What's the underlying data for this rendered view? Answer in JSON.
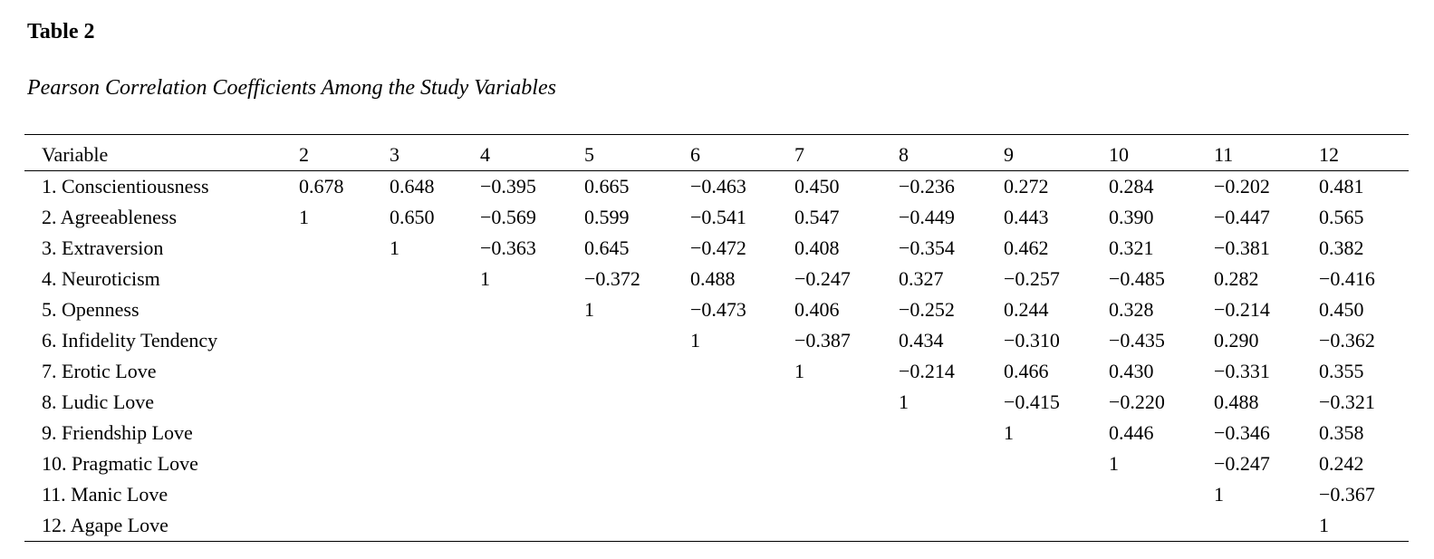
{
  "header": {
    "title": "Table 2",
    "subtitle": "Pearson Correlation Coefficients Among the Study Variables"
  },
  "table": {
    "columns": [
      "Variable",
      "2",
      "3",
      "4",
      "5",
      "6",
      "7",
      "8",
      "9",
      "10",
      "11",
      "12"
    ],
    "rows": [
      [
        "1. Conscientiousness",
        "0.678",
        "0.648",
        "−0.395",
        "0.665",
        "−0.463",
        "0.450",
        "−0.236",
        "0.272",
        "0.284",
        "−0.202",
        "0.481"
      ],
      [
        "2. Agreeableness",
        "1",
        "0.650",
        "−0.569",
        "0.599",
        "−0.541",
        "0.547",
        "−0.449",
        "0.443",
        "0.390",
        "−0.447",
        "0.565"
      ],
      [
        "3. Extraversion",
        null,
        "1",
        "−0.363",
        "0.645",
        "−0.472",
        "0.408",
        "−0.354",
        "0.462",
        "0.321",
        "−0.381",
        "0.382"
      ],
      [
        "4. Neuroticism",
        null,
        null,
        "1",
        "−0.372",
        "0.488",
        "−0.247",
        "0.327",
        "−0.257",
        "−0.485",
        "0.282",
        "−0.416"
      ],
      [
        "5. Openness",
        null,
        null,
        null,
        "1",
        "−0.473",
        "0.406",
        "−0.252",
        "0.244",
        "0.328",
        "−0.214",
        "0.450"
      ],
      [
        "6. Infidelity Tendency",
        null,
        null,
        null,
        null,
        "1",
        "−0.387",
        "0.434",
        "−0.310",
        "−0.435",
        "0.290",
        "−0.362"
      ],
      [
        "7. Erotic Love",
        null,
        null,
        null,
        null,
        null,
        "1",
        "−0.214",
        "0.466",
        "0.430",
        "−0.331",
        "0.355"
      ],
      [
        "8. Ludic Love",
        null,
        null,
        null,
        null,
        null,
        null,
        "1",
        "−0.415",
        "−0.220",
        "0.488",
        "−0.321"
      ],
      [
        "9. Friendship Love",
        null,
        null,
        null,
        null,
        null,
        null,
        null,
        "1",
        "0.446",
        "−0.346",
        "0.358"
      ],
      [
        "10. Pragmatic Love",
        null,
        null,
        null,
        null,
        null,
        null,
        null,
        null,
        "1",
        "−0.247",
        "0.242"
      ],
      [
        "11. Manic Love",
        null,
        null,
        null,
        null,
        null,
        null,
        null,
        null,
        null,
        "1",
        "−0.367"
      ],
      [
        "12. Agape Love",
        null,
        null,
        null,
        null,
        null,
        null,
        null,
        null,
        null,
        null,
        "1"
      ]
    ]
  }
}
